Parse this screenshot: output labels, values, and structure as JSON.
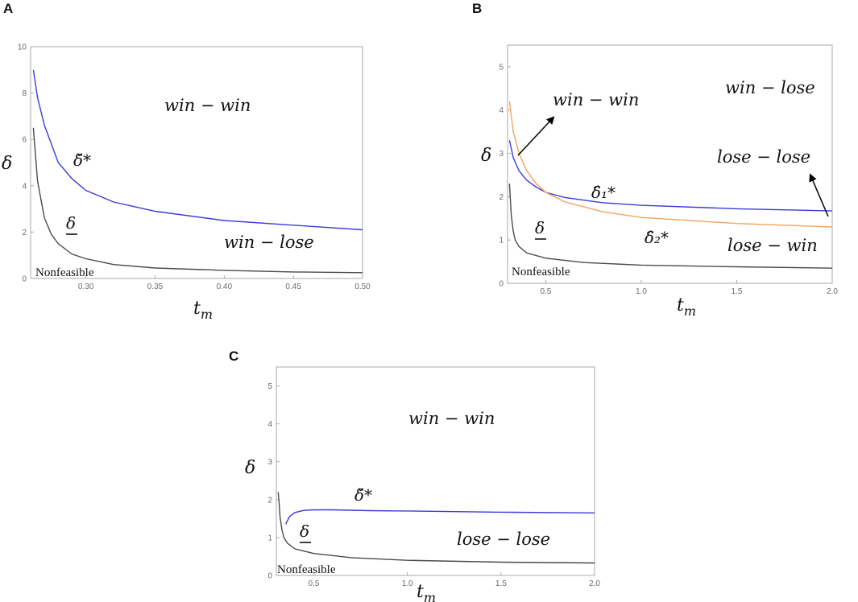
{
  "chart_data": [
    {
      "panel": "A",
      "type": "line",
      "x_range": [
        0.26,
        0.5
      ],
      "y_range": [
        0,
        10
      ],
      "xticks": [
        0.3,
        0.35,
        0.4,
        0.45,
        0.5
      ],
      "xtick_labels": [
        "0.30",
        "0.35",
        "0.40",
        "0.45",
        "0.50"
      ],
      "yticks": [
        0,
        2,
        4,
        6,
        8,
        10
      ],
      "ytick_labels": [
        "0",
        "2",
        "4",
        "6",
        "8",
        "10"
      ],
      "xlabel": "t",
      "xlabel_sub": "m",
      "ylabel": "δ",
      "series": [
        {
          "label": "δ̌*",
          "color": "#3b3bd9",
          "x": [
            0.262,
            0.265,
            0.27,
            0.28,
            0.29,
            0.3,
            0.32,
            0.35,
            0.4,
            0.45,
            0.5
          ],
          "y": [
            9.0,
            7.8,
            6.6,
            5.0,
            4.3,
            3.8,
            3.3,
            2.9,
            2.5,
            2.3,
            2.1
          ]
        },
        {
          "label": "δ",
          "color": "#4a4a4a",
          "x": [
            0.262,
            0.265,
            0.27,
            0.275,
            0.28,
            0.29,
            0.3,
            0.32,
            0.35,
            0.4,
            0.45,
            0.5
          ],
          "y": [
            6.5,
            4.2,
            2.6,
            1.9,
            1.5,
            1.05,
            0.85,
            0.6,
            0.45,
            0.35,
            0.28,
            0.25
          ]
        }
      ],
      "regions": [
        "win − win",
        "win − lose"
      ],
      "region_note": "Nonfeasible"
    },
    {
      "panel": "B",
      "type": "line",
      "x_range": [
        0.3,
        2.0
      ],
      "y_range": [
        0,
        5.5
      ],
      "xticks": [
        0.5,
        1.0,
        1.5,
        2.0
      ],
      "xtick_labels": [
        "0.5",
        "1.0",
        "1.5",
        "2.0"
      ],
      "yticks": [
        0,
        1,
        2,
        3,
        4,
        5
      ],
      "ytick_labels": [
        "0",
        "1",
        "2",
        "3",
        "4",
        "5"
      ],
      "xlabel": "t",
      "xlabel_sub": "m",
      "ylabel": "δ",
      "series": [
        {
          "label": "δ̂₁*",
          "color": "#3b3bd9",
          "x": [
            0.31,
            0.33,
            0.36,
            0.4,
            0.45,
            0.5,
            0.6,
            0.8,
            1.0,
            1.5,
            2.0
          ],
          "y": [
            3.3,
            2.9,
            2.6,
            2.38,
            2.22,
            2.1,
            1.98,
            1.86,
            1.8,
            1.72,
            1.67
          ]
        },
        {
          "label": "δ̂₂*",
          "color": "#f5a35a",
          "x": [
            0.31,
            0.33,
            0.36,
            0.4,
            0.45,
            0.5,
            0.6,
            0.8,
            1.0,
            1.5,
            2.0
          ],
          "y": [
            4.2,
            3.5,
            3.0,
            2.6,
            2.3,
            2.1,
            1.88,
            1.65,
            1.52,
            1.38,
            1.3
          ]
        },
        {
          "label": "δ",
          "color": "#4a4a4a",
          "x": [
            0.31,
            0.315,
            0.32,
            0.33,
            0.34,
            0.36,
            0.4,
            0.5,
            0.7,
            1.0,
            1.5,
            2.0
          ],
          "y": [
            2.3,
            1.9,
            1.55,
            1.2,
            1.0,
            0.85,
            0.7,
            0.58,
            0.48,
            0.42,
            0.38,
            0.35
          ]
        }
      ],
      "regions": [
        "win − win",
        "win − lose",
        "lose − lose",
        "lose − win"
      ],
      "region_note": "Nonfeasible"
    },
    {
      "panel": "C",
      "type": "line",
      "x_range": [
        0.3,
        2.0
      ],
      "y_range": [
        0,
        5.5
      ],
      "xticks": [
        0.5,
        1.0,
        1.5,
        2.0
      ],
      "xtick_labels": [
        "0.5",
        "1.0",
        "1.5",
        "2.0"
      ],
      "yticks": [
        0,
        1,
        2,
        3,
        4,
        5
      ],
      "ytick_labels": [
        "0",
        "1",
        "2",
        "3",
        "4",
        "5"
      ],
      "xlabel": "t",
      "xlabel_sub": "m",
      "ylabel": "δ",
      "series": [
        {
          "label": "δ̌*",
          "color": "#3b3bd9",
          "x": [
            0.35,
            0.37,
            0.4,
            0.45,
            0.5,
            0.6,
            0.8,
            1.0,
            1.5,
            2.0
          ],
          "y": [
            1.35,
            1.55,
            1.66,
            1.72,
            1.73,
            1.73,
            1.71,
            1.7,
            1.67,
            1.65
          ]
        },
        {
          "label": "δ",
          "color": "#4a4a4a",
          "x": [
            0.31,
            0.315,
            0.32,
            0.33,
            0.34,
            0.36,
            0.4,
            0.5,
            0.7,
            1.0,
            1.5,
            2.0
          ],
          "y": [
            2.2,
            1.9,
            1.55,
            1.2,
            1.0,
            0.85,
            0.7,
            0.58,
            0.47,
            0.4,
            0.35,
            0.33
          ]
        }
      ],
      "regions": [
        "win − win",
        "lose − lose"
      ],
      "region_note": "Nonfeasible"
    }
  ]
}
